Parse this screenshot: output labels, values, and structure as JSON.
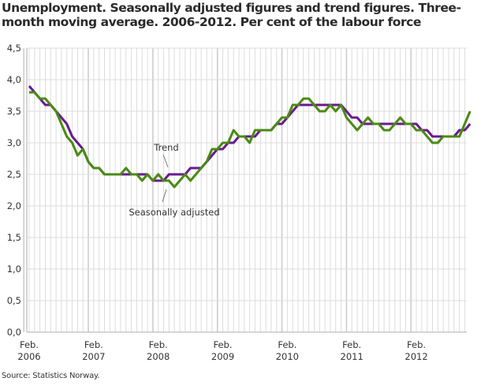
{
  "title": "Unemployment. Seasonally adjusted figures and trend figures. Three-month moving average. 2006-2012. Per cent of the labour force",
  "source": "Source: Statistics Norway.",
  "colors": {
    "trend": "#6a1b8f",
    "seasonally_adjusted": "#4a8a13",
    "grid": "#dcdcdc",
    "grid_year": "#c6c6c6"
  },
  "chart_data": {
    "type": "line",
    "title": "Unemployment. Seasonally adjusted figures and trend figures. Three-month moving average. 2006-2012. Per cent of the labour force",
    "xlabel": "",
    "ylabel": "",
    "ylim": [
      0,
      4.5
    ],
    "yticks": [
      "0,0",
      "0,5",
      "1,0",
      "1,5",
      "2,0",
      "2,5",
      "3,0",
      "3,5",
      "4,0",
      "4,5"
    ],
    "xticks": [
      {
        "line1": "Feb.",
        "line2": "2006"
      },
      {
        "line1": "Feb.",
        "line2": "2007"
      },
      {
        "line1": "Feb.",
        "line2": "2008"
      },
      {
        "line1": "Feb.",
        "line2": "2009"
      },
      {
        "line1": "Feb.",
        "line2": "2010"
      },
      {
        "line1": "Feb.",
        "line2": "2011"
      },
      {
        "line1": "Feb.",
        "line2": "2012"
      }
    ],
    "x_start": "2006-02",
    "x_end": "2012-11",
    "grid": true,
    "annotations": [
      {
        "text": "Trend",
        "series": "Trend"
      },
      {
        "text": "Seasonally adjusted",
        "series": "Seasonally adjusted"
      }
    ],
    "series": [
      {
        "name": "Trend",
        "values": [
          3.9,
          3.8,
          3.7,
          3.6,
          3.6,
          3.5,
          3.4,
          3.3,
          3.1,
          3.0,
          2.9,
          2.7,
          2.6,
          2.6,
          2.5,
          2.5,
          2.5,
          2.5,
          2.5,
          2.5,
          2.5,
          2.5,
          2.5,
          2.4,
          2.4,
          2.4,
          2.5,
          2.5,
          2.5,
          2.5,
          2.6,
          2.6,
          2.6,
          2.7,
          2.8,
          2.9,
          2.9,
          3.0,
          3.0,
          3.1,
          3.1,
          3.1,
          3.1,
          3.2,
          3.2,
          3.2,
          3.3,
          3.3,
          3.4,
          3.5,
          3.6,
          3.6,
          3.6,
          3.6,
          3.6,
          3.6,
          3.6,
          3.6,
          3.6,
          3.5,
          3.4,
          3.4,
          3.3,
          3.3,
          3.3,
          3.3,
          3.3,
          3.3,
          3.3,
          3.3,
          3.3,
          3.3,
          3.3,
          3.2,
          3.2,
          3.1,
          3.1,
          3.1,
          3.1,
          3.1,
          3.2,
          3.2,
          3.3
        ]
      },
      {
        "name": "Seasonally adjusted",
        "values": [
          3.8,
          3.8,
          3.7,
          3.7,
          3.6,
          3.5,
          3.3,
          3.1,
          3.0,
          2.8,
          2.9,
          2.7,
          2.6,
          2.6,
          2.5,
          2.5,
          2.5,
          2.5,
          2.6,
          2.5,
          2.5,
          2.4,
          2.5,
          2.4,
          2.5,
          2.4,
          2.4,
          2.3,
          2.4,
          2.5,
          2.4,
          2.5,
          2.6,
          2.7,
          2.9,
          2.9,
          3.0,
          3.0,
          3.2,
          3.1,
          3.1,
          3.0,
          3.2,
          3.2,
          3.2,
          3.2,
          3.3,
          3.4,
          3.4,
          3.6,
          3.6,
          3.7,
          3.7,
          3.6,
          3.5,
          3.5,
          3.6,
          3.5,
          3.6,
          3.4,
          3.3,
          3.2,
          3.3,
          3.4,
          3.3,
          3.3,
          3.2,
          3.2,
          3.3,
          3.4,
          3.3,
          3.3,
          3.2,
          3.2,
          3.1,
          3.0,
          3.0,
          3.1,
          3.1,
          3.1,
          3.1,
          3.3,
          3.5
        ]
      }
    ]
  }
}
